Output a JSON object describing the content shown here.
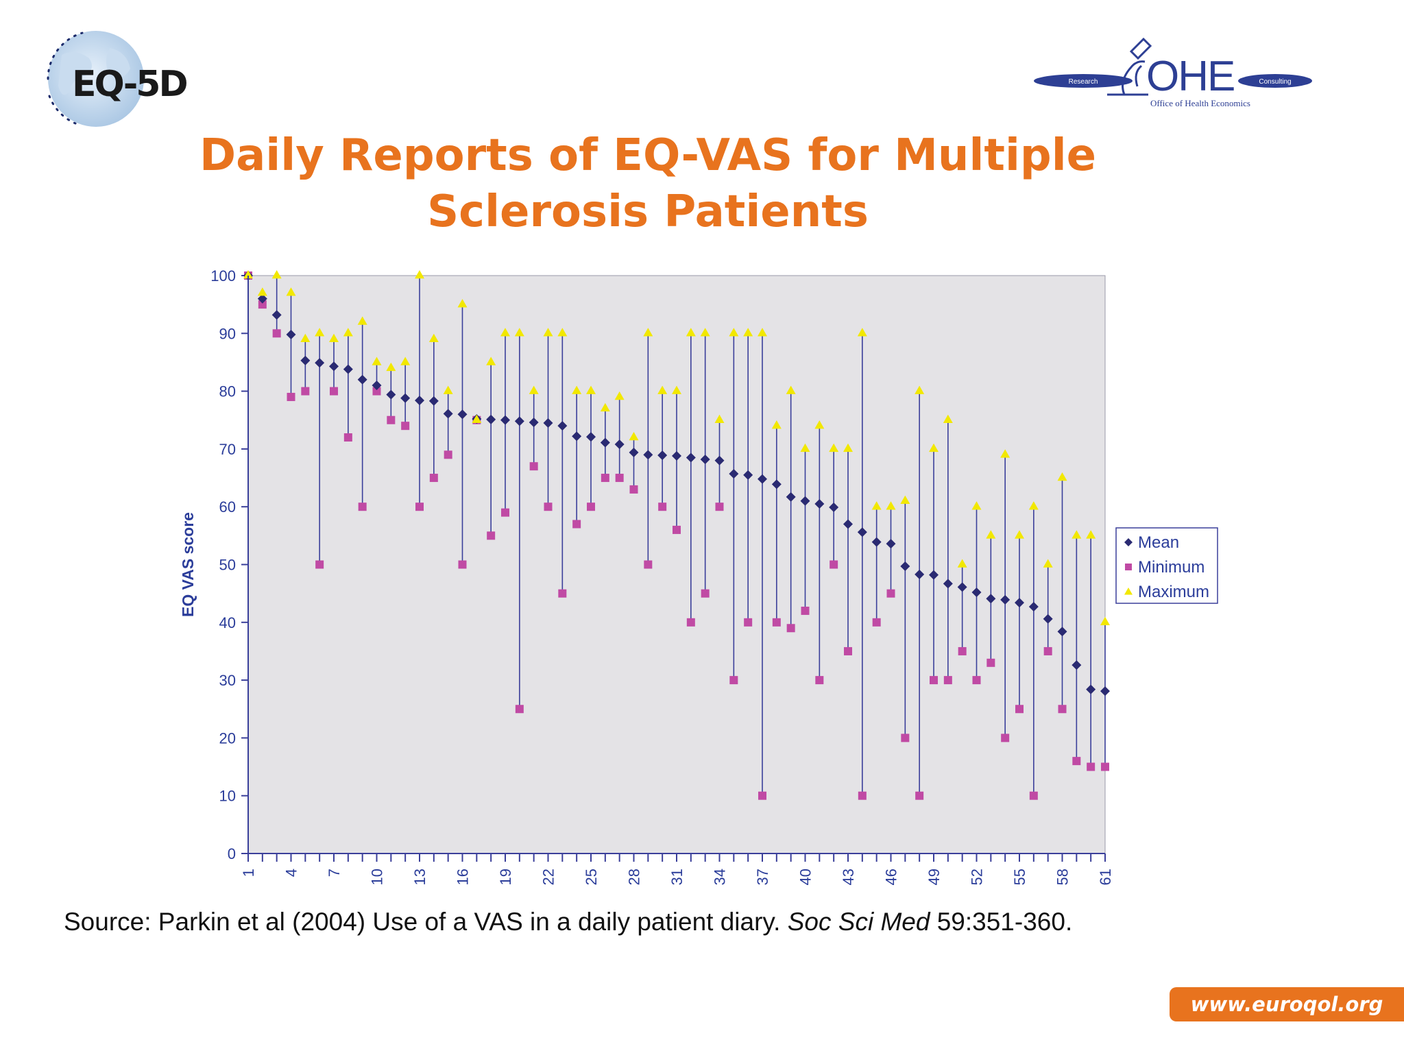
{
  "header": {
    "left_logo": {
      "text": "EQ-5D",
      "icon": "globe-icon"
    },
    "right_logo": {
      "main": "OHE",
      "left_pill": "Research",
      "right_pill": "Consulting",
      "subtitle": "Office of Health Economics",
      "icon": "microscope-icon"
    }
  },
  "title": {
    "line1": "Daily Reports of EQ-VAS for Multiple",
    "line2": "Sclerosis Patients"
  },
  "colors": {
    "title": "#e8731e",
    "axis_text": "#2b3d9a",
    "mean": "#2a2a72",
    "minimum": "#c04aa4",
    "maximum": "#f2e800",
    "range_line": "#3a3f9a",
    "plot_bg": "#e4e3e6"
  },
  "chart_data": {
    "type": "scatter",
    "title": "",
    "xlabel": "",
    "ylabel": "EQ VAS score",
    "ylim": [
      0,
      100
    ],
    "yticks": [
      0,
      10,
      20,
      30,
      40,
      50,
      60,
      70,
      80,
      90,
      100
    ],
    "xlim": [
      1,
      61
    ],
    "xtick_labels": [
      "1",
      "4",
      "7",
      "10",
      "13",
      "16",
      "19",
      "22",
      "25",
      "28",
      "31",
      "34",
      "37",
      "40",
      "43",
      "46",
      "49",
      "52",
      "55",
      "58",
      "61"
    ],
    "legend_position": "right",
    "grid": false,
    "x": [
      1,
      2,
      3,
      4,
      5,
      6,
      7,
      8,
      9,
      10,
      11,
      12,
      13,
      14,
      15,
      16,
      17,
      18,
      19,
      20,
      21,
      22,
      23,
      24,
      25,
      26,
      27,
      28,
      29,
      30,
      31,
      32,
      33,
      34,
      35,
      36,
      37,
      38,
      39,
      40,
      41,
      42,
      43,
      44,
      45,
      46,
      47,
      48,
      49,
      50,
      51,
      52,
      53,
      54,
      55,
      56,
      57,
      58,
      59,
      60,
      61
    ],
    "series": [
      {
        "name": "Mean",
        "values": [
          100,
          96,
          93.2,
          89.8,
          85.3,
          84.9,
          84.3,
          83.8,
          82.0,
          81.0,
          79.4,
          78.8,
          78.4,
          78.3,
          76.1,
          76.0,
          75.2,
          75.1,
          75.0,
          74.8,
          74.6,
          74.5,
          74.0,
          72.2,
          72.1,
          71.1,
          70.8,
          69.4,
          69.0,
          68.9,
          68.8,
          68.5,
          68.2,
          68.0,
          65.7,
          65.5,
          64.8,
          63.9,
          61.7,
          61.0,
          60.5,
          59.9,
          57.0,
          55.6,
          53.9,
          53.6,
          49.7,
          48.3,
          48.2,
          46.7,
          46.1,
          45.2,
          44.1,
          43.9,
          43.4,
          42.7,
          40.6,
          38.4,
          32.6,
          28.4,
          28.1
        ]
      },
      {
        "name": "Minimum",
        "values": [
          100,
          95,
          90,
          79,
          80,
          50,
          80,
          72,
          60,
          80,
          75,
          74,
          60,
          65,
          69,
          50,
          75,
          55,
          59,
          25,
          67,
          60,
          45,
          57,
          60,
          65,
          65,
          63,
          50,
          60,
          56,
          40,
          45,
          60,
          30,
          40,
          10,
          40,
          39,
          42,
          30,
          50,
          35,
          10,
          40,
          45,
          20,
          10,
          30,
          30,
          35,
          30,
          33,
          20,
          25,
          10,
          35,
          25,
          16,
          15,
          15
        ]
      },
      {
        "name": "Maximum",
        "values": [
          100,
          97,
          100,
          97,
          89,
          90,
          89,
          90,
          92,
          85,
          84,
          85,
          100,
          89,
          80,
          95,
          75,
          85,
          90,
          90,
          80,
          90,
          90,
          80,
          80,
          77,
          79,
          72,
          90,
          80,
          80,
          90,
          90,
          75,
          90,
          90,
          90,
          74,
          80,
          70,
          74,
          70,
          70,
          90,
          60,
          60,
          61,
          80,
          70,
          75,
          50,
          60,
          55,
          69,
          55,
          60,
          50,
          65,
          55,
          55,
          40
        ]
      }
    ]
  },
  "source": {
    "prefix": "Source: Parkin et al (2004) Use of a VAS in a daily patient diary. ",
    "journal": "Soc Sci Med",
    "suffix": " 59:351-360."
  },
  "footer": {
    "url": "www.euroqol.org"
  }
}
